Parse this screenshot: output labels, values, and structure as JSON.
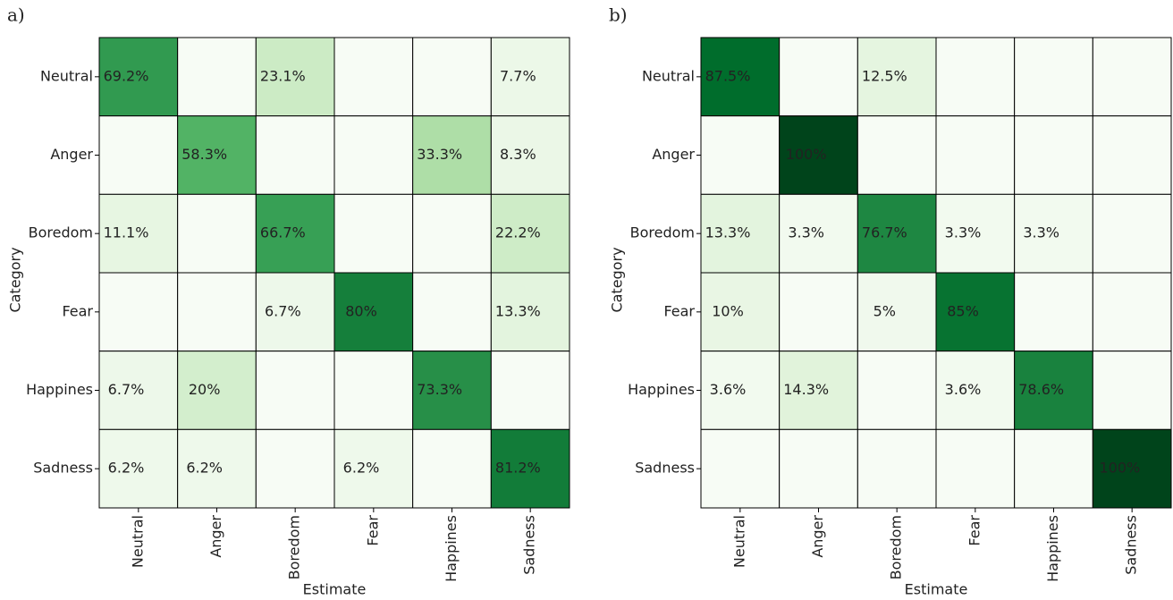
{
  "chart_data": [
    {
      "type": "heatmap",
      "panel_label": "a)",
      "xlabel": "Estimate",
      "ylabel": "Category",
      "rows": [
        "Neutral",
        "Anger",
        "Boredom",
        "Fear",
        "Happines",
        "Sadness"
      ],
      "columns": [
        "Neutral",
        "Anger",
        "Boredom",
        "Fear",
        "Happines",
        "Sadness"
      ],
      "values": [
        [
          69.2,
          0,
          23.1,
          0,
          0,
          7.7
        ],
        [
          0,
          58.3,
          0,
          0,
          33.3,
          8.3
        ],
        [
          11.1,
          0,
          66.7,
          0,
          0,
          22.2
        ],
        [
          0,
          0,
          6.7,
          80,
          0,
          13.3
        ],
        [
          6.7,
          20,
          0,
          0,
          73.3,
          0
        ],
        [
          6.2,
          6.2,
          0,
          6.2,
          0,
          81.2
        ]
      ],
      "value_labels": [
        [
          "69.2%",
          null,
          "23.1%",
          null,
          null,
          "7.7%"
        ],
        [
          null,
          "58.3%",
          null,
          null,
          "33.3%",
          "8.3%"
        ],
        [
          "11.1%",
          null,
          "66.7%",
          null,
          null,
          "22.2%"
        ],
        [
          null,
          null,
          "6.7%",
          "80%",
          null,
          "13.3%"
        ],
        [
          "6.7%",
          "20%",
          null,
          null,
          "73.3%",
          null
        ],
        [
          "6.2%",
          "6.2%",
          null,
          "6.2%",
          null,
          "81.2%"
        ]
      ],
      "clim": [
        0,
        100
      ],
      "colormap": [
        "#f7fcf5",
        "#e5f5e0",
        "#c7e9c0",
        "#a1d99b",
        "#74c476",
        "#41ab5d",
        "#238b45",
        "#006d2c",
        "#00441b"
      ]
    },
    {
      "type": "heatmap",
      "panel_label": "b)",
      "xlabel": "Estimate",
      "ylabel": "Category",
      "rows": [
        "Neutral",
        "Anger",
        "Boredom",
        "Fear",
        "Happines",
        "Sadness"
      ],
      "columns": [
        "Neutral",
        "Anger",
        "Boredom",
        "Fear",
        "Happines",
        "Sadness"
      ],
      "values": [
        [
          87.5,
          0,
          12.5,
          0,
          0,
          0
        ],
        [
          0,
          100,
          0,
          0,
          0,
          0
        ],
        [
          13.3,
          3.3,
          76.7,
          3.3,
          3.3,
          0
        ],
        [
          10,
          0,
          5,
          85,
          0,
          0
        ],
        [
          3.6,
          14.3,
          0,
          3.6,
          78.6,
          0
        ],
        [
          0,
          0,
          0,
          0,
          0,
          100
        ]
      ],
      "value_labels": [
        [
          "87.5%",
          null,
          "12.5%",
          null,
          null,
          null
        ],
        [
          null,
          "100%",
          null,
          null,
          null,
          null
        ],
        [
          "13.3%",
          "3.3%",
          "76.7%",
          "3.3%",
          "3.3%",
          null
        ],
        [
          "10%",
          null,
          "5%",
          "85%",
          null,
          null
        ],
        [
          "3.6%",
          "14.3%",
          null,
          "3.6%",
          "78.6%",
          null
        ],
        [
          null,
          null,
          null,
          null,
          null,
          "100%"
        ]
      ],
      "clim": [
        0,
        100
      ],
      "colormap": [
        "#f7fcf5",
        "#e5f5e0",
        "#c7e9c0",
        "#a1d99b",
        "#74c476",
        "#41ab5d",
        "#238b45",
        "#006d2c",
        "#00441b"
      ]
    }
  ]
}
